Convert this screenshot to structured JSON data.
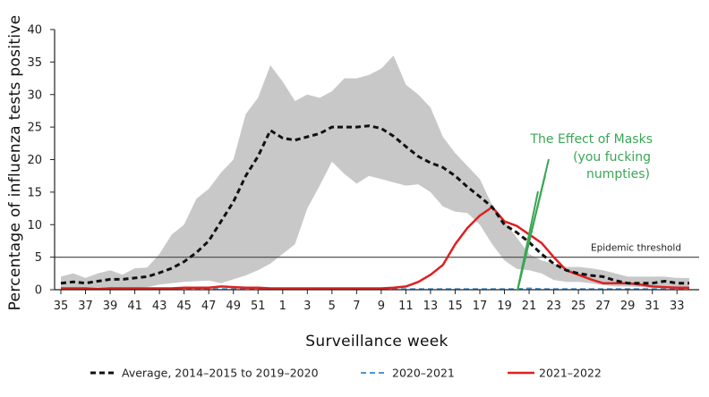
{
  "chart_data": {
    "type": "line",
    "xlabel": "Surveillance week",
    "ylabel": "Percentage of influenza  tests positive",
    "ylim": [
      0,
      40
    ],
    "yticks": [
      "0",
      "5",
      "10",
      "15",
      "20",
      "25",
      "30",
      "35",
      "40"
    ],
    "x_categories": [
      "35",
      "36",
      "37",
      "38",
      "39",
      "40",
      "41",
      "42",
      "43",
      "44",
      "45",
      "46",
      "47",
      "48",
      "49",
      "50",
      "51",
      "52",
      "1",
      "2",
      "3",
      "4",
      "5",
      "6",
      "7",
      "8",
      "9",
      "10",
      "11",
      "12",
      "13",
      "14",
      "15",
      "16",
      "17",
      "18",
      "19",
      "20",
      "21",
      "22",
      "23",
      "24",
      "25",
      "26",
      "27",
      "28",
      "29",
      "30",
      "31",
      "32",
      "33",
      "34"
    ],
    "xtick_labels": [
      "35",
      "37",
      "39",
      "41",
      "43",
      "45",
      "47",
      "49",
      "51",
      "1",
      "3",
      "5",
      "7",
      "9",
      "11",
      "13",
      "15",
      "17",
      "19",
      "21",
      "23",
      "25",
      "27",
      "29",
      "31",
      "33"
    ],
    "threshold": {
      "value": 5,
      "label": "Epidemic threshold"
    },
    "band": {
      "upper": [
        2,
        2.5,
        1.8,
        2.5,
        3,
        2.3,
        3.3,
        3.4,
        5.5,
        8.5,
        10,
        14,
        15.5,
        18,
        20,
        27,
        29.5,
        34.5,
        32,
        29,
        30,
        29.5,
        30.5,
        32.5,
        32.5,
        33,
        34,
        36,
        31.5,
        30,
        28,
        23.5,
        21,
        19,
        17,
        13,
        10.5,
        8,
        5.5,
        4.5,
        4,
        3.5,
        3.5,
        3.3,
        3,
        2.5,
        2,
        2,
        2,
        2,
        1.8,
        1.8
      ],
      "lower": [
        0.2,
        0.2,
        0.1,
        0.1,
        0.2,
        0.2,
        0.3,
        0.4,
        0.8,
        1.0,
        1.2,
        1.3,
        1.4,
        1.0,
        1.6,
        2.2,
        3.0,
        4.0,
        5.5,
        7.0,
        12.5,
        16.0,
        19.7,
        17.8,
        16.3,
        17.5,
        17,
        16.5,
        16.0,
        16.2,
        15.0,
        12.8,
        12,
        11.8,
        10,
        7,
        4.5,
        3.2,
        3,
        2.5,
        1.5,
        1.2,
        1.2,
        1,
        0.7,
        0.5,
        0.5,
        0.4,
        0.3,
        0.2,
        0.2,
        0.2
      ]
    },
    "series": [
      {
        "name": "Average, 2014–2015 to 2019–2020",
        "color": "#111111",
        "style": "dashed",
        "values": [
          1.0,
          1.2,
          1.0,
          1.3,
          1.6,
          1.6,
          1.8,
          2.0,
          2.6,
          3.3,
          4.3,
          5.7,
          7.5,
          10.5,
          13.5,
          17.5,
          20.5,
          24.5,
          23.3,
          23.0,
          23.5,
          24.0,
          25.0,
          25.0,
          25.0,
          25.2,
          24.8,
          23.6,
          22.0,
          20.5,
          19.5,
          18.8,
          17.5,
          15.8,
          14.3,
          12.7,
          10.0,
          8.8,
          7.3,
          5.5,
          4.0,
          3.0,
          2.5,
          2.2,
          2.0,
          1.4,
          1.0,
          1.0,
          1.0,
          1.3,
          1.0,
          1.0
        ]
      },
      {
        "name": "2020–2021",
        "color": "#4a98d3",
        "style": "dashed",
        "values": [
          0.1,
          0.1,
          0.1,
          0.1,
          0.1,
          0.1,
          0.1,
          0.1,
          0.1,
          0.1,
          0.1,
          0.1,
          0.1,
          0.1,
          0.1,
          0.1,
          0.1,
          0.1,
          0.1,
          0.1,
          0.1,
          0.1,
          0.1,
          0.1,
          0.1,
          0.1,
          0.1,
          0.1,
          0.1,
          0.1,
          0.1,
          0.1,
          0.1,
          0.1,
          0.1,
          0.1,
          0.1,
          0.1,
          0.2,
          0.1,
          0.1,
          0.1,
          0.1,
          0.1,
          0.1,
          0.1,
          0.1,
          0.1,
          0.1,
          0.1,
          0.1,
          0.1
        ]
      },
      {
        "name": "2021–2022",
        "color": "#e02020",
        "style": "solid",
        "values": [
          0.2,
          0.2,
          0.2,
          0.1,
          0.2,
          0.2,
          0.2,
          0.2,
          0.2,
          0.2,
          0.3,
          0.3,
          0.3,
          0.5,
          0.4,
          0.3,
          0.3,
          0.2,
          0.2,
          0.2,
          0.2,
          0.2,
          0.2,
          0.2,
          0.2,
          0.2,
          0.2,
          0.3,
          0.5,
          1.2,
          2.3,
          3.8,
          7.0,
          9.5,
          11.4,
          12.7,
          10.5,
          9.8,
          8.5,
          7.2,
          5.0,
          3.0,
          2.3,
          1.6,
          1.0,
          1.0,
          1.0,
          0.8,
          0.5,
          0.4,
          0.3,
          0.3
        ]
      }
    ],
    "annotation": {
      "lines": [
        "The Effect of Masks",
        "(you fucking",
        "numpties)"
      ],
      "color": "#3aa655",
      "arrow_targets_week_index": [
        35,
        36,
        37
      ]
    },
    "legend_placement": "bottom",
    "grid": false
  }
}
